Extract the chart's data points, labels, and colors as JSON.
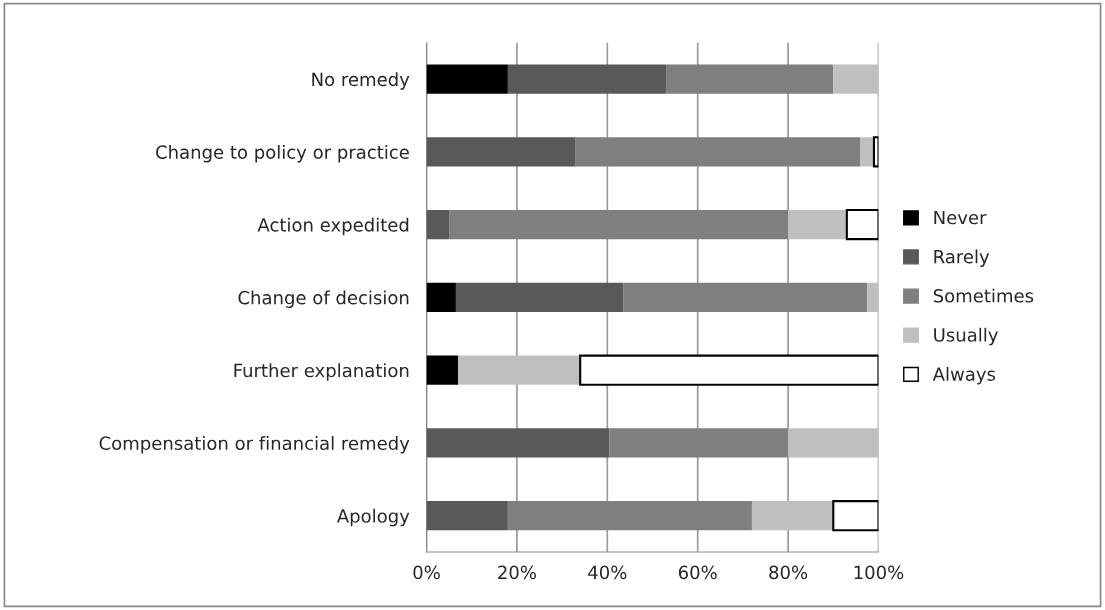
{
  "chart_data": {
    "type": "bar",
    "orientation": "horizontal",
    "stacked": true,
    "categories": [
      "No remedy",
      "Change to policy or practice",
      "Action expedited",
      "Change of decision",
      "Further explanation",
      "Compensation or financial remedy",
      "Apology"
    ],
    "series": [
      {
        "name": "Never",
        "color": "#000000",
        "values": [
          18,
          0,
          0,
          6.5,
          7,
          0,
          0
        ]
      },
      {
        "name": "Rarely",
        "color": "#595959",
        "values": [
          35,
          33,
          5,
          37,
          0,
          40.5,
          18
        ]
      },
      {
        "name": "Sometimes",
        "color": "#7f7f7f",
        "values": [
          37,
          63,
          75,
          54,
          0,
          39.5,
          54
        ]
      },
      {
        "name": "Usually",
        "color": "#bfbfbf",
        "values": [
          10,
          3,
          13,
          2.5,
          27,
          20,
          18
        ]
      },
      {
        "name": "Always",
        "color": "#ffffff",
        "values": [
          0,
          1,
          7,
          0,
          66,
          0,
          10
        ]
      }
    ],
    "xlim": [
      0,
      100
    ],
    "xticks": [
      {
        "value": 0,
        "label": "0%"
      },
      {
        "value": 20,
        "label": "20%"
      },
      {
        "value": 40,
        "label": "40%"
      },
      {
        "value": 60,
        "label": "60%"
      },
      {
        "value": 80,
        "label": "80%"
      },
      {
        "value": 100,
        "label": "100%"
      }
    ],
    "grid": "x",
    "legend": "right"
  }
}
